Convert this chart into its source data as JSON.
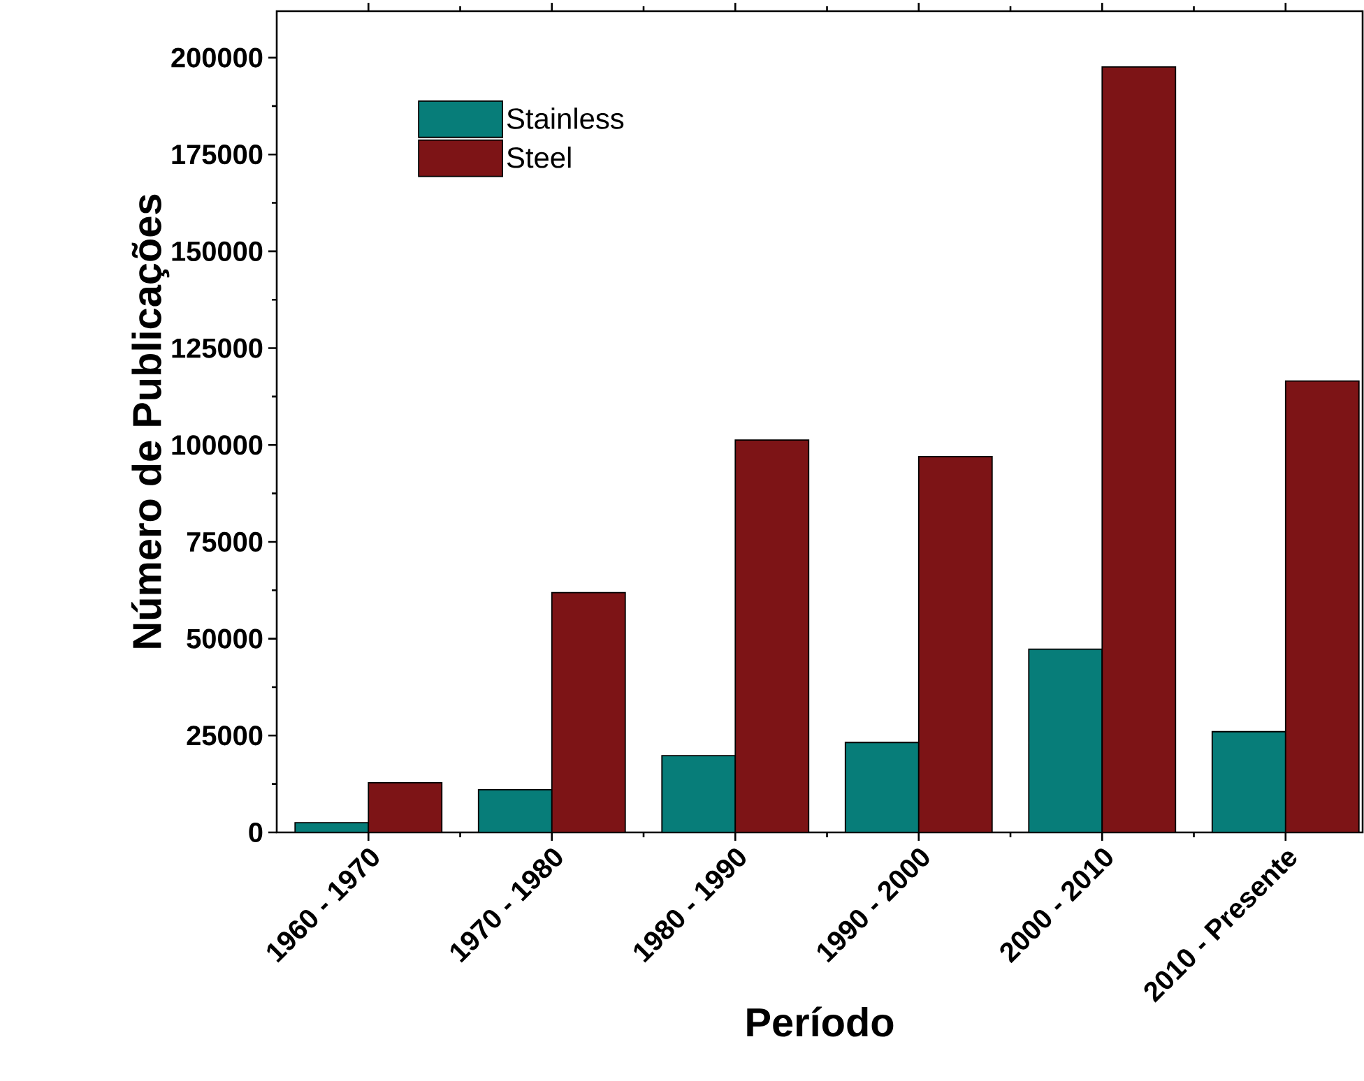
{
  "chart_data": {
    "type": "bar",
    "xlabel": "Período",
    "ylabel": "Número de Publicações",
    "categories": [
      "1960 - 1970",
      "1970 - 1980",
      "1980 - 1990",
      "1990 - 2000",
      "2000 - 2010",
      "2010 - Presente"
    ],
    "series": [
      {
        "name": "Stainless",
        "color": "#077d79",
        "values": [
          2500,
          11000,
          19800,
          23200,
          47300,
          26000
        ]
      },
      {
        "name": "Steel",
        "color": "#7d1416",
        "values": [
          12800,
          61900,
          101300,
          97000,
          197600,
          116500
        ]
      }
    ],
    "ylim": [
      0,
      212000
    ],
    "yticks": [
      0,
      25000,
      50000,
      75000,
      100000,
      125000,
      150000,
      175000,
      200000
    ],
    "grid": false,
    "legend": "top left"
  }
}
